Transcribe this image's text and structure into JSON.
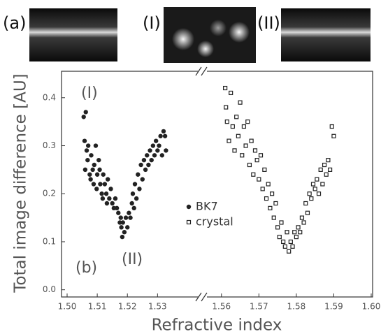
{
  "chart_data": {
    "type": "scatter",
    "xlabel": "Refractive index",
    "ylabel": "Total image difference [AU]",
    "panel_labels": [
      "(a)",
      "(I)",
      "(II)"
    ],
    "annotations": [
      "(I)",
      "(II)",
      "(b)"
    ],
    "x_segments": [
      [
        1.5,
        1.545
      ],
      [
        1.555,
        1.6
      ]
    ],
    "ylim": [
      -0.015,
      0.455
    ],
    "xticks": [
      {
        "value": 1.5,
        "label": "1.50"
      },
      1.51,
      1.52,
      1.53,
      1.56,
      1.57,
      1.58,
      1.59,
      {
        "value": 1.6,
        "label": "1.60"
      }
    ],
    "yticks": [
      {
        "value": 0,
        "label": "0.0"
      },
      0.1,
      0.2,
      0.3,
      0.4
    ],
    "legend": "center",
    "series": [
      {
        "name": "BK7",
        "color": "#222222",
        "marker": "circle",
        "x": [
          1.5055,
          1.5062,
          1.5058,
          1.5065,
          1.506,
          1.507,
          1.5068,
          1.5075,
          1.508,
          1.5078,
          1.5085,
          1.509,
          1.5088,
          1.5095,
          1.51,
          1.5098,
          1.5105,
          1.511,
          1.5108,
          1.5115,
          1.512,
          1.5118,
          1.5125,
          1.513,
          1.5135,
          1.5132,
          1.514,
          1.5145,
          1.515,
          1.5155,
          1.516,
          1.5165,
          1.517,
          1.5175,
          1.5178,
          1.518,
          1.5183,
          1.5185,
          1.519,
          1.5195,
          1.52,
          1.5205,
          1.521,
          1.5215,
          1.5218,
          1.5222,
          1.5225,
          1.523,
          1.5235,
          1.524,
          1.5245,
          1.525,
          1.5255,
          1.526,
          1.5265,
          1.527,
          1.5275,
          1.528,
          1.5285,
          1.529,
          1.5295,
          1.53,
          1.5305,
          1.531,
          1.5315,
          1.532,
          1.5325,
          1.5328
        ],
        "values": [
          0.36,
          0.37,
          0.31,
          0.29,
          0.25,
          0.3,
          0.27,
          0.24,
          0.28,
          0.23,
          0.25,
          0.26,
          0.22,
          0.3,
          0.24,
          0.21,
          0.27,
          0.22,
          0.25,
          0.2,
          0.24,
          0.19,
          0.22,
          0.2,
          0.23,
          0.18,
          0.19,
          0.21,
          0.18,
          0.17,
          0.19,
          0.17,
          0.16,
          0.14,
          0.15,
          0.13,
          0.11,
          0.14,
          0.12,
          0.15,
          0.13,
          0.16,
          0.15,
          0.18,
          0.2,
          0.17,
          0.22,
          0.19,
          0.24,
          0.21,
          0.26,
          0.23,
          0.27,
          0.25,
          0.28,
          0.26,
          0.29,
          0.27,
          0.3,
          0.28,
          0.31,
          0.29,
          0.3,
          0.32,
          0.28,
          0.33,
          0.32,
          0.29
        ]
      },
      {
        "name": "crystal",
        "color": "#222222",
        "marker": "square",
        "x": [
          1.561,
          1.5615,
          1.562,
          1.5612,
          1.5625,
          1.563,
          1.5635,
          1.564,
          1.5645,
          1.565,
          1.5655,
          1.566,
          1.5665,
          1.567,
          1.5675,
          1.568,
          1.5685,
          1.569,
          1.5695,
          1.57,
          1.5705,
          1.571,
          1.5715,
          1.572,
          1.5725,
          1.573,
          1.5735,
          1.574,
          1.5745,
          1.575,
          1.5755,
          1.576,
          1.5765,
          1.577,
          1.5775,
          1.578,
          1.5785,
          1.579,
          1.5795,
          1.58,
          1.5805,
          1.581,
          1.5815,
          1.582,
          1.5825,
          1.583,
          1.5835,
          1.584,
          1.5845,
          1.585,
          1.5855,
          1.586,
          1.5865,
          1.587,
          1.5875,
          1.588,
          1.5885,
          1.589,
          1.5895,
          1.59
        ],
        "values": [
          0.42,
          0.35,
          0.31,
          0.38,
          0.41,
          0.34,
          0.29,
          0.36,
          0.32,
          0.39,
          0.28,
          0.34,
          0.3,
          0.35,
          0.26,
          0.31,
          0.24,
          0.29,
          0.27,
          0.23,
          0.28,
          0.21,
          0.25,
          0.19,
          0.22,
          0.17,
          0.2,
          0.15,
          0.18,
          0.13,
          0.11,
          0.14,
          0.1,
          0.09,
          0.12,
          0.08,
          0.1,
          0.09,
          0.12,
          0.11,
          0.13,
          0.12,
          0.15,
          0.14,
          0.18,
          0.16,
          0.2,
          0.19,
          0.22,
          0.21,
          0.23,
          0.2,
          0.25,
          0.22,
          0.26,
          0.24,
          0.27,
          0.25,
          0.34,
          0.32
        ]
      }
    ]
  }
}
